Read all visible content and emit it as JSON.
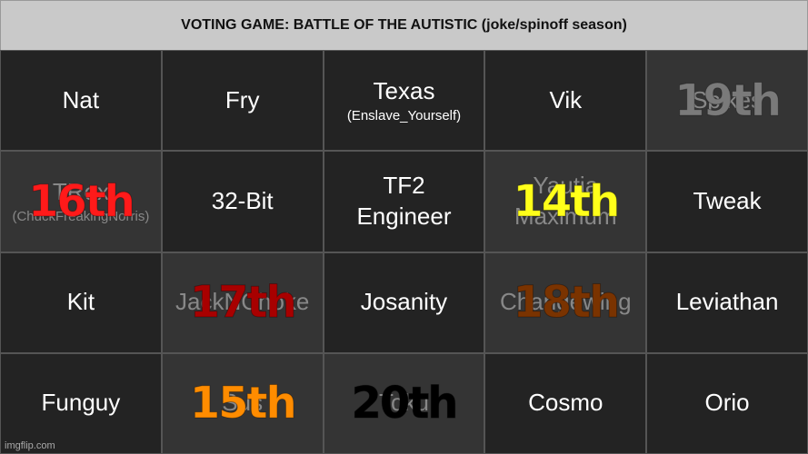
{
  "header": {
    "title": "VOTING GAME: BATTLE OF THE AUTISTIC (joke/spinoff season)"
  },
  "cells": [
    {
      "name": "Nat"
    },
    {
      "name": "Fry"
    },
    {
      "name": "Texas",
      "subtitle": "(Enslave_Yourself)"
    },
    {
      "name": "Vik"
    },
    {
      "name": "Spikes",
      "placement": "19th",
      "placement_color": "#7a7a7a"
    },
    {
      "name": "TRex",
      "subtitle": "(ChuckFreakingNorris)",
      "placement": "16th",
      "placement_color": "#ff1a1a"
    },
    {
      "name": "32-Bit"
    },
    {
      "name": "TF2 Engineer"
    },
    {
      "name": "Yautja Maximum",
      "placement": "14th",
      "placement_color": "#ffff1a"
    },
    {
      "name": "Tweak"
    },
    {
      "name": "Kit"
    },
    {
      "name": "JackNChoke",
      "placement": "17th",
      "placement_color": "#a80000"
    },
    {
      "name": "Josanity"
    },
    {
      "name": "Changewing",
      "placement": "18th",
      "placement_color": "#7a3300"
    },
    {
      "name": "Leviathan"
    },
    {
      "name": "Funguy"
    },
    {
      "name": "Sus",
      "placement": "15th",
      "placement_color": "#ff8c00"
    },
    {
      "name": "Toku",
      "placement": "20th",
      "placement_color": "#000000"
    },
    {
      "name": "Cosmo"
    },
    {
      "name": "Orio"
    }
  ],
  "watermark": "imgflip.com"
}
